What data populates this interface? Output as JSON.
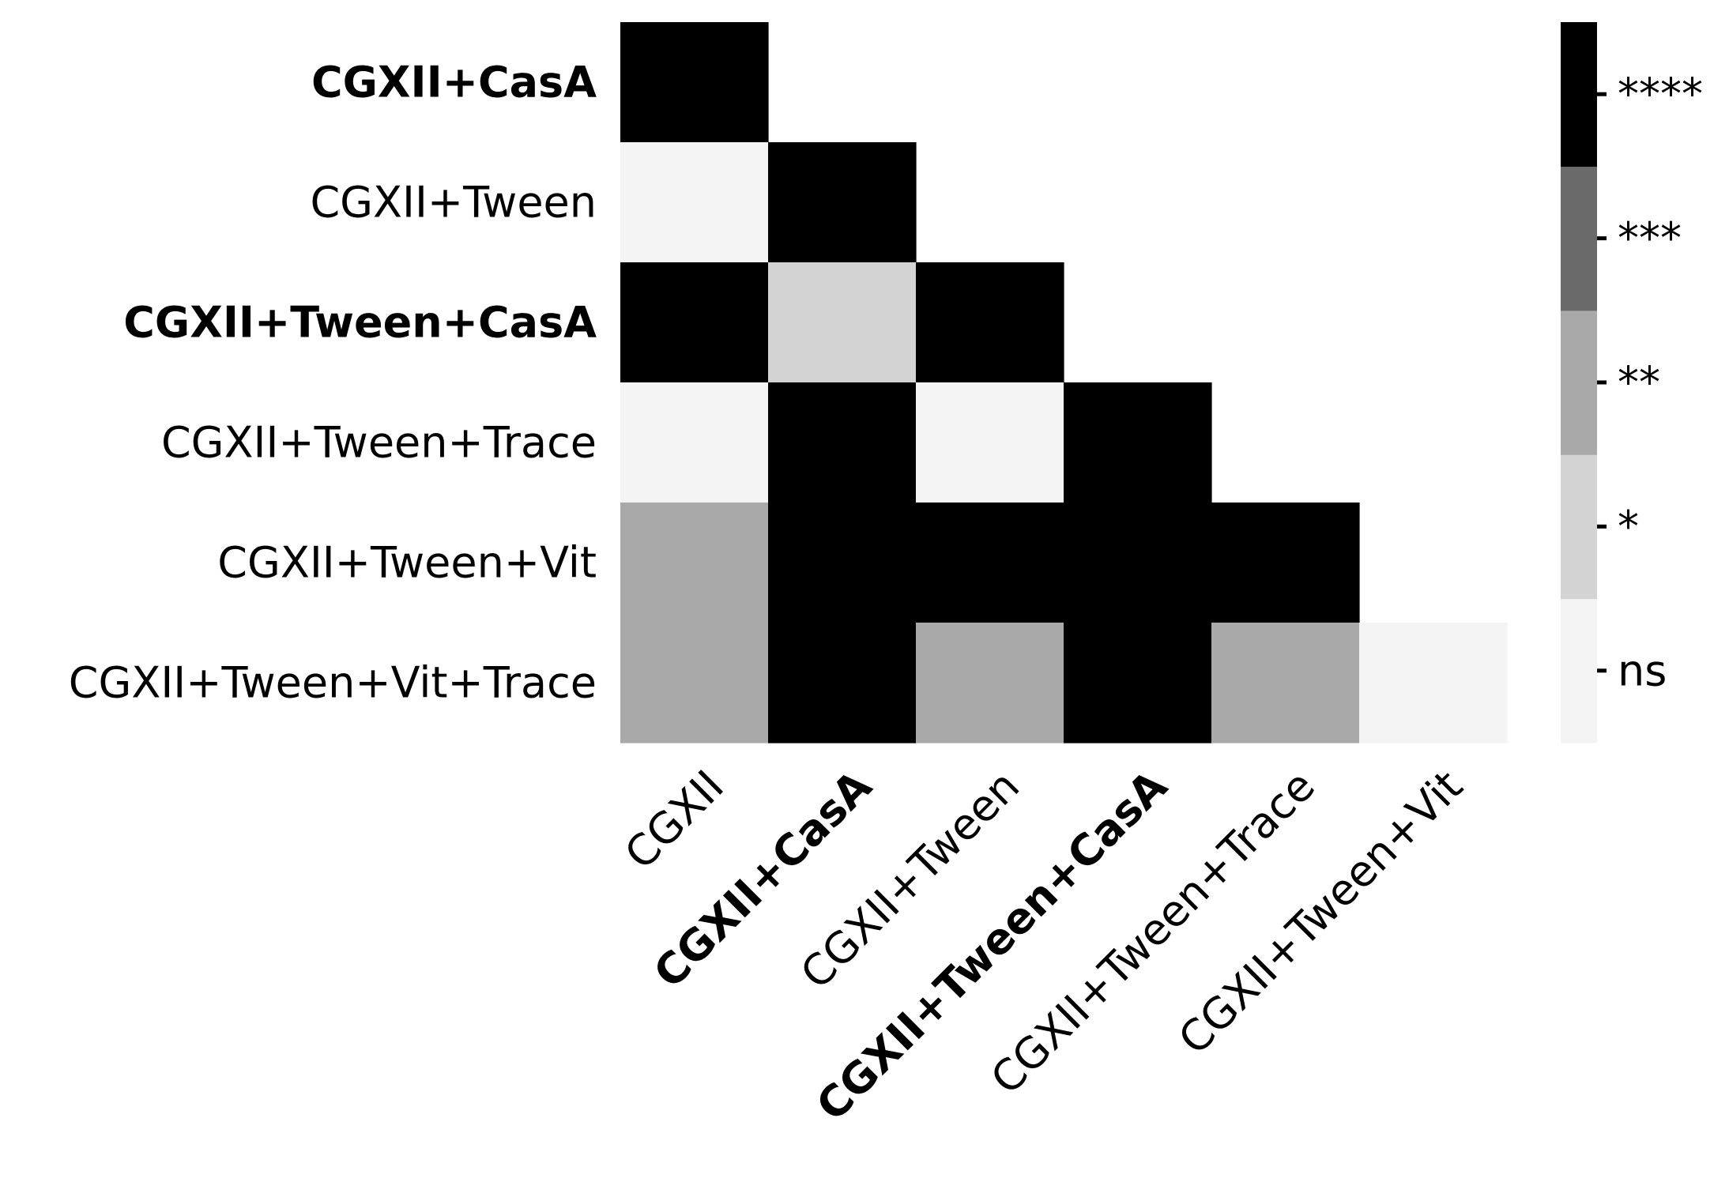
{
  "chart_data": {
    "type": "heatmap",
    "title": "",
    "xlabel": "",
    "ylabel": "",
    "row_labels": [
      "CGXII+CasA",
      "CGXII+Tween",
      "CGXII+Tween+CasA",
      "CGXII+Tween+Trace",
      "CGXII+Tween+Vit",
      "CGXII+Tween+Vit+Trace"
    ],
    "row_bold": [
      true,
      false,
      true,
      false,
      false,
      false
    ],
    "col_labels": [
      "CGXII",
      "CGXII+CasA",
      "CGXII+Tween",
      "CGXII+Tween+CasA",
      "CGXII+Tween+Trace",
      "CGXII+Tween+Vit"
    ],
    "col_bold": [
      false,
      true,
      false,
      true,
      false,
      false
    ],
    "levels": [
      "ns",
      "*",
      "**",
      "***",
      "****"
    ],
    "level_colors": [
      "#f4f4f4",
      "#d3d3d3",
      "#a9a9a9",
      "#6a6a6a",
      "#000000"
    ],
    "matrix": [
      [
        "****",
        null,
        null,
        null,
        null,
        null
      ],
      [
        "ns",
        "****",
        null,
        null,
        null,
        null
      ],
      [
        "****",
        "*",
        "****",
        null,
        null,
        null
      ],
      [
        "ns",
        "****",
        "ns",
        "****",
        null,
        null
      ],
      [
        "**",
        "****",
        "****",
        "****",
        "****",
        null
      ],
      [
        "**",
        "****",
        "**",
        "****",
        "**",
        "ns"
      ]
    ],
    "colorbar_labels": [
      "ns",
      "*",
      "**",
      "***",
      "****"
    ]
  }
}
